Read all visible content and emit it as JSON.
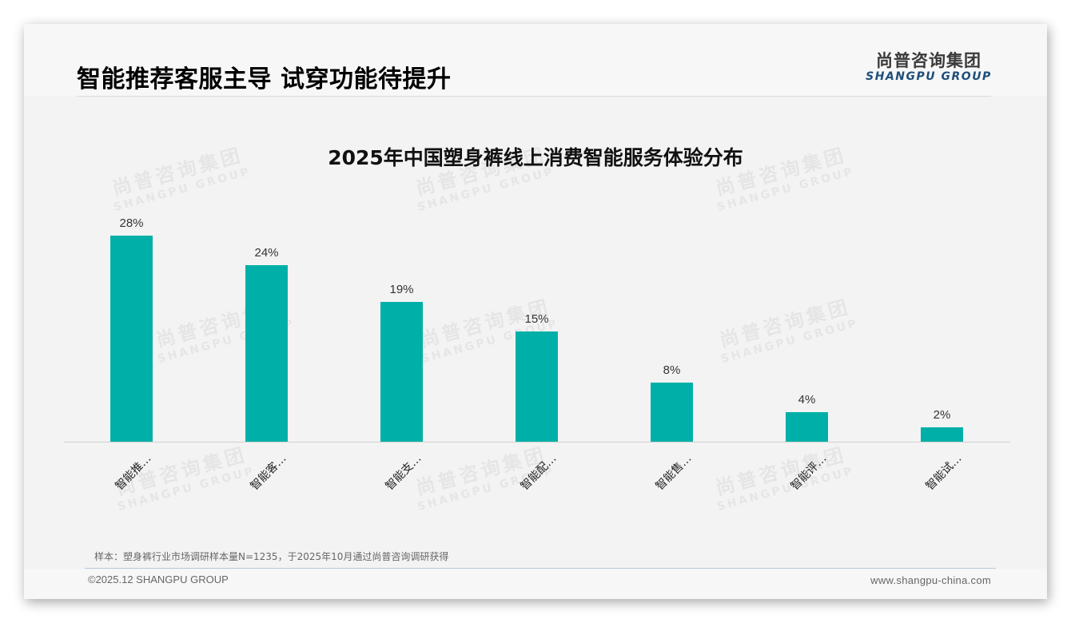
{
  "header": {
    "title": "智能推荐客服主导 试穿功能待提升",
    "logo": {
      "cn": "尚普咨询集团",
      "en": "SHANGPU GROUP"
    }
  },
  "watermark": {
    "cn": "尚普咨询集团",
    "en": "SHANGPU GROUP"
  },
  "colors": {
    "bar": "#00b0a8",
    "logo_en": "#1f4e79"
  },
  "chart_data": {
    "type": "bar",
    "title": "2025年中国塑身裤线上消费智能服务体验分布",
    "categories": [
      "智能推…",
      "智能客…",
      "智能支…",
      "智能配…",
      "智能售…",
      "智能评…",
      "智能试…"
    ],
    "values": [
      28,
      24,
      19,
      15,
      8,
      4,
      2
    ],
    "value_labels": [
      "28%",
      "24%",
      "19%",
      "15%",
      "8%",
      "4%",
      "2%"
    ],
    "xlabel": "",
    "ylabel": "",
    "ylim": [
      0,
      30
    ],
    "unit": "%",
    "grid": false,
    "legend": "none"
  },
  "footer": {
    "note": "样本：塑身裤行业市场调研样本量N=1235，于2025年10月通过尚普咨询调研获得",
    "copyright": "©2025.12 SHANGPU GROUP",
    "website": "www.shangpu-china.com"
  }
}
